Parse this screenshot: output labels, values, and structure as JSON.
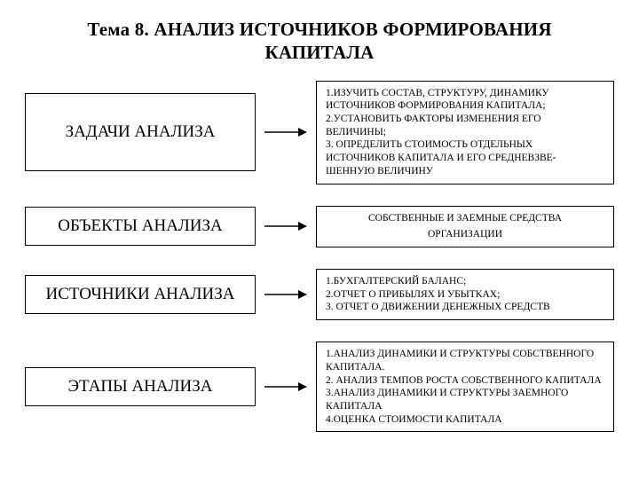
{
  "title_line1": "Тема 8. АНАЛИЗ ИСТОЧНИКОВ ФОРМИРОВАНИЯ",
  "title_line2": "КАПИТАЛА",
  "rows": [
    {
      "left": "ЗАДАЧИ АНАЛИЗА",
      "right_lines": [
        "1.ИЗУЧИТЬ СОСТАВ, СТРУКТУРУ, ДИНАМИКУ",
        "ИСТОЧНИКОВ ФОРМИРОВАНИЯ КАПИТАЛА;",
        "2.УСТАНОВИТЬ ФАКТОРЫ ИЗМЕНЕНИЯ ЕГО",
        " ВЕЛИЧИНЫ;",
        "3. ОПРЕДЕЛИТЬ СТОИМОСТЬ ОТДЕЛЬНЫХ",
        "ИСТОЧНИКОВ КАПИТАЛА И ЕГО СРЕДНЕВЗВЕ-",
        "ШЕННУЮ ВЕЛИЧИНУ"
      ],
      "centered": false,
      "tall": true
    },
    {
      "left": "ОБЪЕКТЫ АНАЛИЗА",
      "right_lines": [
        "СОБСТВЕННЫЕ И ЗАЕМНЫЕ СРЕДСТВА",
        "",
        "ОРГАНИЗАЦИИ"
      ],
      "centered": true,
      "tall": false
    },
    {
      "left": "ИСТОЧНИКИ АНАЛИЗА",
      "right_lines": [
        "1.БУХГАЛТЕРСКИЙ БАЛАНС;",
        "2.ОТЧЕТ О ПРИБЫЛЯХ И УБЫТКАХ;",
        "3. ОТЧЕТ О ДВИЖЕНИИ ДЕНЕЖНЫХ СРЕДСТВ"
      ],
      "centered": false,
      "tall": false
    },
    {
      "left": "ЭТАПЫ АНАЛИЗА",
      "right_lines": [
        "1.АНАЛИЗ  ДИНАМИКИ И СТРУКТУРЫ СОБСТВЕННОГО",
        "КАПИТАЛА.",
        "2. АНАЛИЗ ТЕМПОВ РОСТА СОБСТВЕННОГО КАПИТАЛА",
        "3.АНАЛИЗ ДИНАМИКИ И СТРУКТУРЫ ЗАЕМНОГО",
        "КАПИТАЛА",
        "4.ОЦЕНКА СТОИМОСТИ КАПИТАЛА"
      ],
      "centered": false,
      "tall": false
    }
  ],
  "style": {
    "type": "flowchart",
    "background_color": "#ffffff",
    "text_color": "#000000",
    "border_color": "#000000",
    "arrow_color": "#000000",
    "title_fontsize": 21,
    "left_fontsize": 19,
    "right_fontsize": 11.5,
    "font_family": "Times New Roman",
    "left_box_width": 260,
    "arrow_width": 48,
    "row_gap": 24
  }
}
